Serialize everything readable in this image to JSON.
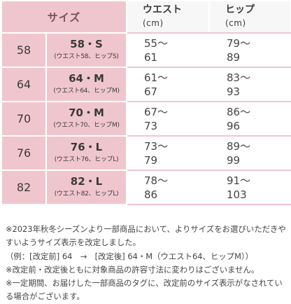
{
  "header": {
    "size": "サイズ",
    "waist": "ウエスト",
    "waist_unit": "(cm)",
    "hip": "ヒップ",
    "hip_unit": "(cm)"
  },
  "rows": [
    {
      "size": "58",
      "label": "58・S",
      "sub": "(ウエスト58、ヒップS)",
      "waist_min": "55〜",
      "waist_max": "61",
      "hip_min": "79〜",
      "hip_max": "89"
    },
    {
      "size": "64",
      "label": "64・M",
      "sub": "(ウエスト64、ヒップM)",
      "waist_min": "61〜",
      "waist_max": "67",
      "hip_min": "83〜",
      "hip_max": "93"
    },
    {
      "size": "70",
      "label": "70・M",
      "sub": "(ウエスト70、ヒップM)",
      "waist_min": "67〜",
      "waist_max": "73",
      "hip_min": "86〜",
      "hip_max": "96"
    },
    {
      "size": "76",
      "label": "76・L",
      "sub": "(ウエスト76、ヒップL)",
      "waist_min": "73〜",
      "waist_max": "79",
      "hip_min": "89〜",
      "hip_max": "99"
    },
    {
      "size": "82",
      "label": "82・L",
      "sub": "(ウエスト82、ヒップL)",
      "waist_min": "78〜",
      "waist_max": "86",
      "hip_min": "91〜",
      "hip_max": "103"
    }
  ],
  "notes": [
    "※2023年秋冬シーズンより一部商品において、よりサイズをお選びいただきやすいようサイズ表示を改定しました。",
    "（例：[改定前] 64　→　[改定後] 64・M（ウエスト64、ヒップM））",
    "※改定前・改定後ともに対象商品の許容寸法に変わりはございません。",
    "※一定期間、お届けした一部商品のタグに、改定前のサイズ表示がなされている場合がございます。"
  ],
  "colors": {
    "pink": "#f0c6ce",
    "header_gray": "#f7f7f7",
    "text": "#3a3a3a"
  }
}
